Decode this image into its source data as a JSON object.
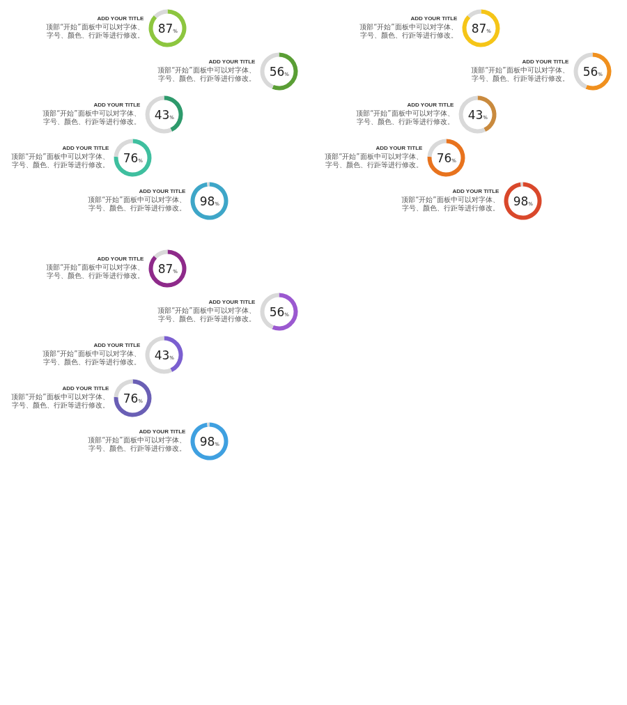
{
  "chart_data": [
    {
      "type": "donut",
      "title": "ADD YOUR TITLE",
      "annotations": [
        "顶部“开始”面板中可以对字体、字号、颜色、行距等进行修改。"
      ],
      "categories": [
        null,
        null
      ],
      "values": [
        87,
        13
      ],
      "colors": [
        "#8dc63f",
        "#d9d9d9"
      ],
      "value_labels": [
        "87%",
        null
      ]
    },
    {
      "type": "donut",
      "title": "ADD YOUR TITLE",
      "annotations": [
        "顶部“开始”面板中可以对字体、字号、颜色、行距等进行修改。"
      ],
      "categories": [
        null,
        null
      ],
      "values": [
        56,
        44
      ],
      "colors": [
        "#5a9e35",
        "#d9d9d9"
      ],
      "value_labels": [
        "56%",
        null
      ]
    },
    {
      "type": "donut",
      "title": "ADD YOUR TITLE",
      "annotations": [
        "顶部“开始”面板中可以对字体、字号、颜色、行距等进行修改。"
      ],
      "categories": [
        null,
        null
      ],
      "values": [
        43,
        57
      ],
      "colors": [
        "#2e9a6c",
        "#d9d9d9"
      ],
      "value_labels": [
        "43%",
        null
      ]
    },
    {
      "type": "donut",
      "title": "ADD YOUR TITLE",
      "annotations": [
        "顶部“开始”面板中可以对字体、字号、颜色、行距等进行修改。"
      ],
      "categories": [
        null,
        null
      ],
      "values": [
        76,
        24
      ],
      "colors": [
        "#3fbf9f",
        "#d9d9d9"
      ],
      "value_labels": [
        "76%",
        null
      ]
    },
    {
      "type": "donut",
      "title": "ADD YOUR TITLE",
      "annotations": [
        "顶部“开始”面板中可以对字体、字号、颜色、行距等进行修改。"
      ],
      "categories": [
        null,
        null
      ],
      "values": [
        98,
        2
      ],
      "colors": [
        "#3ea6c8",
        "#d9d9d9"
      ],
      "value_labels": [
        "98%",
        null
      ]
    },
    {
      "type": "donut",
      "title": "ADD YOUR TITLE",
      "annotations": [
        "顶部“开始”面板中可以对字体、字号、颜色、行距等进行修改。"
      ],
      "categories": [
        null,
        null
      ],
      "values": [
        87,
        13
      ],
      "colors": [
        "#f5c518",
        "#d9d9d9"
      ],
      "value_labels": [
        "87%",
        null
      ]
    },
    {
      "type": "donut",
      "title": "ADD YOUR TITLE",
      "annotations": [
        "顶部“开始”面板中可以对字体、字号、颜色、行距等进行修改。"
      ],
      "categories": [
        null,
        null
      ],
      "values": [
        56,
        44
      ],
      "colors": [
        "#f0901e",
        "#d9d9d9"
      ],
      "value_labels": [
        "56%",
        null
      ]
    },
    {
      "type": "donut",
      "title": "ADD YOUR TITLE",
      "annotations": [
        "顶部“开始”面板中可以对字体、字号、颜色、行距等进行修改。"
      ],
      "categories": [
        null,
        null
      ],
      "values": [
        43,
        57
      ],
      "colors": [
        "#c98a3e",
        "#d9d9d9"
      ],
      "value_labels": [
        "43%",
        null
      ]
    },
    {
      "type": "donut",
      "title": "ADD YOUR TITLE",
      "annotations": [
        "顶部“开始”面板中可以对字体、字号、颜色、行距等进行修改。"
      ],
      "categories": [
        null,
        null
      ],
      "values": [
        76,
        24
      ],
      "colors": [
        "#e8731e",
        "#d9d9d9"
      ],
      "value_labels": [
        "76%",
        null
      ]
    },
    {
      "type": "donut",
      "title": "ADD YOUR TITLE",
      "annotations": [
        "顶部“开始”面板中可以对字体、字号、颜色、行距等进行修改。"
      ],
      "categories": [
        null,
        null
      ],
      "values": [
        98,
        2
      ],
      "colors": [
        "#d9482b",
        "#d9d9d9"
      ],
      "value_labels": [
        "98%",
        null
      ]
    },
    {
      "type": "donut",
      "title": "ADD YOUR TITLE",
      "annotations": [
        "顶部“开始”面板中可以对字体、字号、颜色、行距等进行修改。"
      ],
      "categories": [
        null,
        null
      ],
      "values": [
        87,
        13
      ],
      "colors": [
        "#8e2a8a",
        "#d9d9d9"
      ],
      "value_labels": [
        "87%",
        null
      ]
    },
    {
      "type": "donut",
      "title": "ADD YOUR TITLE",
      "annotations": [
        "顶部“开始”面板中可以对字体、字号、颜色、行距等进行修改。"
      ],
      "categories": [
        null,
        null
      ],
      "values": [
        56,
        44
      ],
      "colors": [
        "#9b59d0",
        "#d9d9d9"
      ],
      "value_labels": [
        "56%",
        null
      ]
    },
    {
      "type": "donut",
      "title": "ADD YOUR TITLE",
      "annotations": [
        "顶部“开始”面板中可以对字体、字号、颜色、行距等进行修改。"
      ],
      "categories": [
        null,
        null
      ],
      "values": [
        43,
        57
      ],
      "colors": [
        "#7b5fd0",
        "#d9d9d9"
      ],
      "value_labels": [
        "43%",
        null
      ]
    },
    {
      "type": "donut",
      "title": "ADD YOUR TITLE",
      "annotations": [
        "顶部“开始”面板中可以对字体、字号、颜色、行距等进行修改。"
      ],
      "categories": [
        null,
        null
      ],
      "values": [
        76,
        24
      ],
      "colors": [
        "#6a5fb5",
        "#d9d9d9"
      ],
      "value_labels": [
        "76%",
        null
      ]
    },
    {
      "type": "donut",
      "title": "ADD YOUR TITLE",
      "annotations": [
        "顶部“开始”面板中可以对字体、字号、颜色、行距等进行修改。"
      ],
      "categories": [
        null,
        null
      ],
      "values": [
        98,
        2
      ],
      "colors": [
        "#3fa0e0",
        "#d9d9d9"
      ],
      "value_labels": [
        "98%",
        null
      ]
    }
  ]
}
